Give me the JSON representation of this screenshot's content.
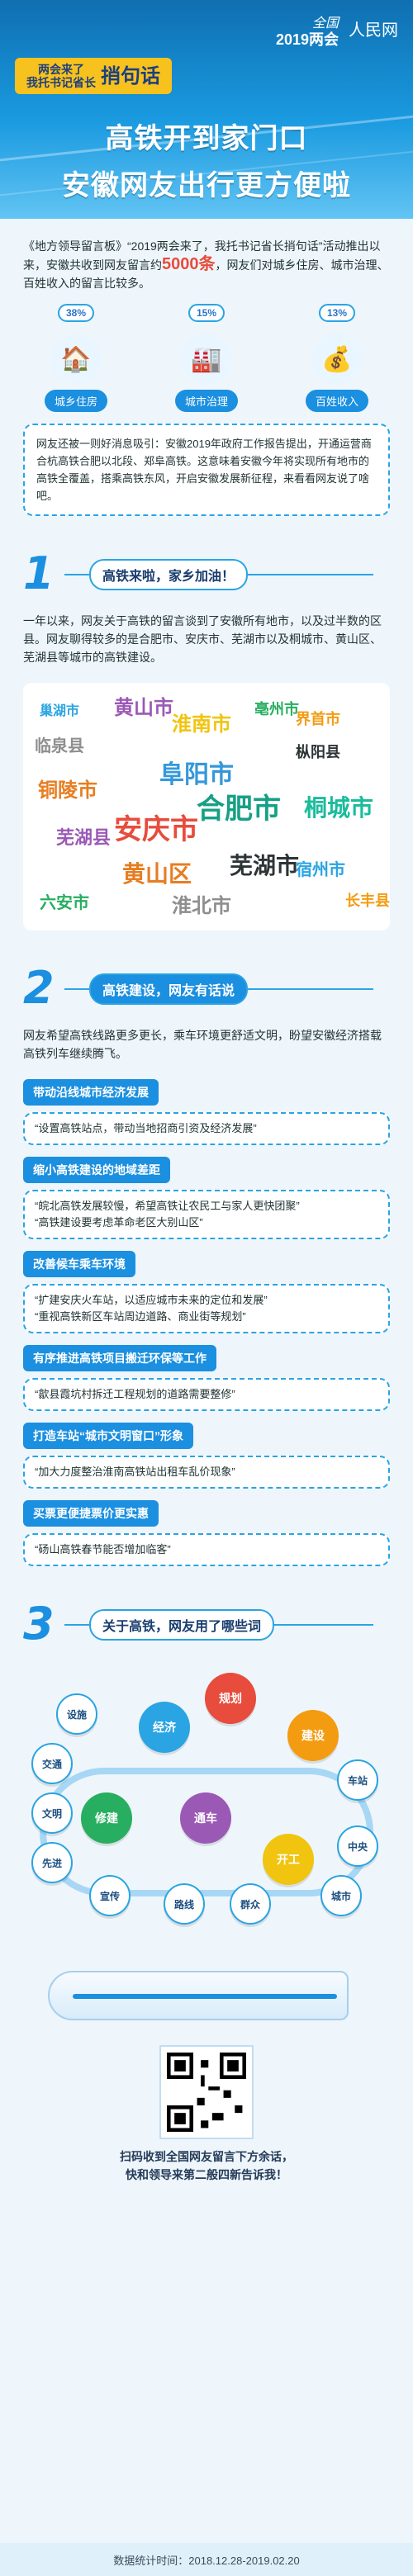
{
  "header": {
    "logo_line1": "两会来了",
    "logo_line2": "我托书记省长",
    "logo_big": "捎句话",
    "event_line1": "全国",
    "event_line2": "2019两会",
    "brand": "人民网",
    "title1": "高铁开到家门口",
    "title2": "安徽网友出行更方便啦"
  },
  "intro": {
    "text1": "《地方领导留言板》“2019两会来了，我托书记省长捎句话”活动推出以来，安徽共收到网友留言约",
    "count": "5000条",
    "text2": "，网友们对城乡住房、城市治理、百姓收入的留言比较多。",
    "stats": [
      {
        "pct": "38%",
        "label": "城乡住房",
        "icon": "🏠"
      },
      {
        "pct": "15%",
        "label": "城市治理",
        "icon": "🏭"
      },
      {
        "pct": "13%",
        "label": "百姓收入",
        "icon": "💰"
      }
    ]
  },
  "note": {
    "text": "网友还被一则好消息吸引：安徽2019年政府工作报告提出，开通运营商合杭高铁合肥以北段、郑阜高铁。这意味着安徽今年将实现所有地市的高铁全覆盖，搭乘高铁东风，开启安徽发展新征程，来看看网友说了啥吧。"
  },
  "section1": {
    "num": "1",
    "title": "高铁来啦，家乡加油！",
    "para": "一年以来，网友关于高铁的留言谈到了安徽所有地市，以及过半数的区县。网友聊得较多的是合肥市、安庆市、芜湖市以及桐城市、黄山区、芜湖县等城市的高铁建设。"
  },
  "cloud": [
    {
      "text": "巢湖市",
      "color": "#2aa4e3"
    },
    {
      "text": "黄山市",
      "color": "#9b59b6"
    },
    {
      "text": "临泉县",
      "color": "#8e8e8e"
    },
    {
      "text": "铜陵市",
      "color": "#e67e22"
    },
    {
      "text": "淮南市",
      "color": "#f1c40f"
    },
    {
      "text": "亳州市",
      "color": "#27ae60"
    },
    {
      "text": "枞阳县",
      "color": "#2d3436"
    },
    {
      "text": "阜阳市",
      "color": "#3498db"
    },
    {
      "text": "安庆市",
      "color": "#e74c3c"
    },
    {
      "text": "合肥市",
      "color": "#16a085"
    },
    {
      "text": "桐城市",
      "color": "#1abc9c"
    },
    {
      "text": "芜湖县",
      "color": "#9b59b6"
    },
    {
      "text": "黄山区",
      "color": "#e67e22"
    },
    {
      "text": "芜湖市",
      "color": "#2d3436"
    },
    {
      "text": "六安市",
      "color": "#27ae60"
    },
    {
      "text": "淮北市",
      "color": "#8e8e8e"
    },
    {
      "text": "界首市",
      "color": "#f39c12"
    },
    {
      "text": "宿州市",
      "color": "#2aa4e3"
    },
    {
      "text": "长丰县",
      "color": "#f39c12"
    }
  ],
  "section2": {
    "num": "2",
    "title": "高铁建设，网友有话说",
    "para": "网友希望高铁线路更多更长，乘车环境更舒适文明，盼望安徽经济搭载高铁列车继续腾飞。"
  },
  "items": [
    {
      "title": "带动沿线城市经济发展",
      "quotes": [
        "“设置高铁站点，带动当地招商引资及经济发展”"
      ]
    },
    {
      "title": "缩小高铁建设的地域差距",
      "quotes": [
        "“皖北高铁发展较慢，希望高铁让农民工与家人更快团聚”",
        "“高铁建设要考虑革命老区大别山区”"
      ]
    },
    {
      "title": "改善候车乘车环境",
      "quotes": [
        "“扩建安庆火车站，以适应城市未来的定位和发展”",
        "“重视高铁新区车站周边道路、商业街等规划”"
      ]
    },
    {
      "title": "有序推进高铁项目搬迁环保等工作",
      "quotes": [
        "“歙县霞坑村拆迁工程规划的道路需要整修”"
      ]
    },
    {
      "title": "打造车站“城市文明窗口”形象",
      "quotes": [
        "“加大力度整治淮南高铁站出租车乱价现象”"
      ]
    },
    {
      "title": "买票更便捷票价更实惠",
      "quotes": [
        "“砀山高铁春节能否增加临客”"
      ]
    }
  ],
  "section3": {
    "num": "3",
    "title": "关于高铁，网友用了哪些词"
  },
  "topics": {
    "main": [
      {
        "text": "规划",
        "color": "#e74c3c"
      },
      {
        "text": "经济",
        "color": "#2aa4e3"
      },
      {
        "text": "建设",
        "color": "#f39c12"
      },
      {
        "text": "开工",
        "color": "#f1c40f"
      },
      {
        "text": "修建",
        "color": "#27ae60"
      },
      {
        "text": "通车",
        "color": "#9b59b6"
      }
    ],
    "small": [
      "交通",
      "文明",
      "先进",
      "宣传",
      "路线",
      "车站",
      "中央",
      "城市",
      "群众",
      "设施"
    ]
  },
  "footer": {
    "line1": "扫码收到全国网友留言下方余话，",
    "line2": "快和领导来第二般四新告诉我！",
    "time": "数据统计时间：2018.12.28-2019.02.20"
  }
}
